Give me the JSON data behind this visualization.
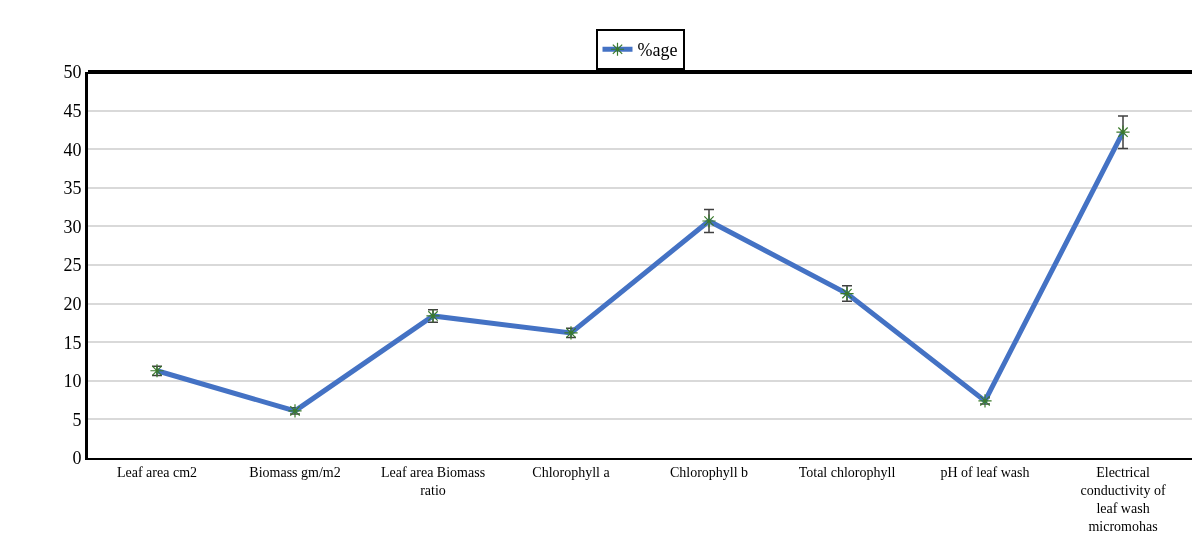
{
  "chart_data": {
    "type": "line",
    "categories": [
      "Leaf area cm2",
      "Biomass gm/m2",
      "Leaf area Biomass ratio",
      "Chlorophyll a",
      "Chlorophyll b",
      "Total chlorophyll",
      "pH of leaf wash",
      "Electrical conductivity of leaf wash micromohas"
    ],
    "series": [
      {
        "name": "%age",
        "color": "#4472c4",
        "values": [
          11.3,
          6.1,
          18.4,
          16.2,
          30.7,
          21.3,
          7.4,
          42.2
        ],
        "errors": [
          0.6,
          0.4,
          0.8,
          0.6,
          1.5,
          1.0,
          0.4,
          2.1
        ]
      }
    ],
    "ylim": [
      0,
      50
    ],
    "yticks": [
      0,
      5,
      10,
      15,
      20,
      25,
      30,
      35,
      40,
      45,
      50
    ],
    "grid": "y",
    "legend": "top",
    "marker": "cross",
    "line_style": "solid"
  }
}
